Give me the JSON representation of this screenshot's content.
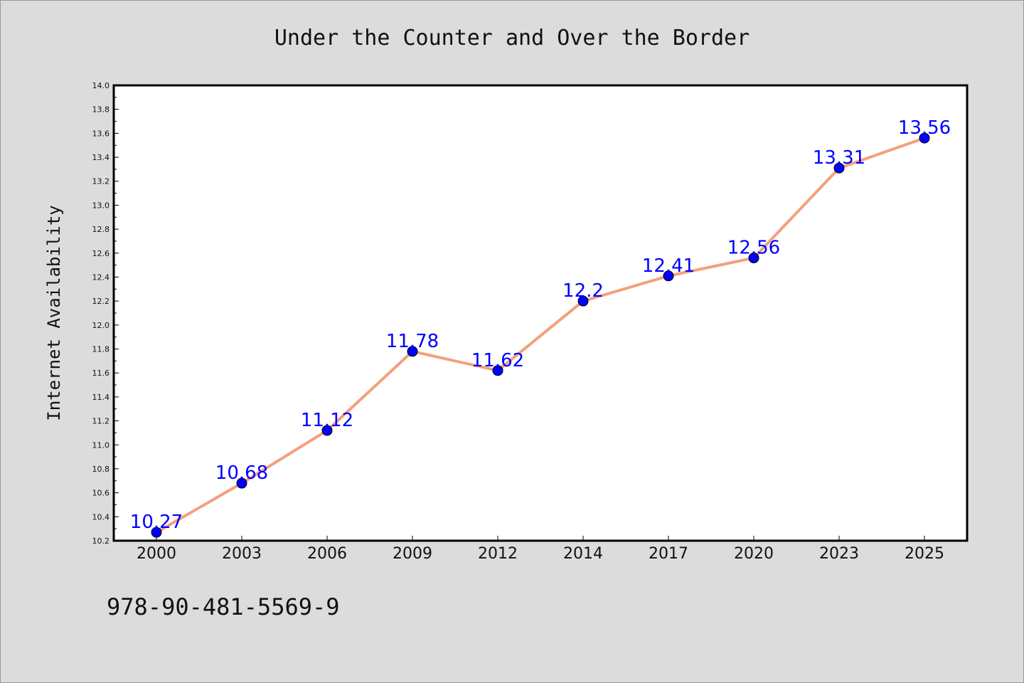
{
  "chart_data": {
    "type": "line",
    "title": "Under the Counter and Over the Border",
    "xlabel": "",
    "ylabel": "Internet Availability",
    "categories": [
      "2000",
      "2003",
      "2006",
      "2009",
      "2012",
      "2014",
      "2017",
      "2020",
      "2023",
      "2025"
    ],
    "series": [
      {
        "values": [
          10.27,
          10.68,
          11.12,
          11.78,
          11.62,
          12.2,
          12.41,
          12.56,
          13.31,
          13.56
        ],
        "labels": [
          "10.27",
          "10.68",
          "11.12",
          "11.78",
          "11.62",
          "12.2",
          "12.41",
          "12.56",
          "13.31",
          "13.56"
        ],
        "line_color": "#f4a07c",
        "marker_color": "#0000ff",
        "label_color": "#0000ff"
      }
    ],
    "ylim": [
      10.2,
      14.0
    ],
    "yticks": [
      "10.2",
      "10.4",
      "10.6",
      "10.8",
      "11.0",
      "11.2",
      "11.4",
      "11.6",
      "11.8",
      "12.0",
      "12.2",
      "12.4",
      "12.6",
      "12.8",
      "13.0",
      "13.2",
      "13.4",
      "13.6",
      "13.8",
      "14.0"
    ],
    "grid": false,
    "legend": "none"
  },
  "footer": {
    "isbn": "978-90-481-5569-9"
  },
  "colors": {
    "background": "#dcdcdc",
    "plot_background": "#ffffff"
  }
}
